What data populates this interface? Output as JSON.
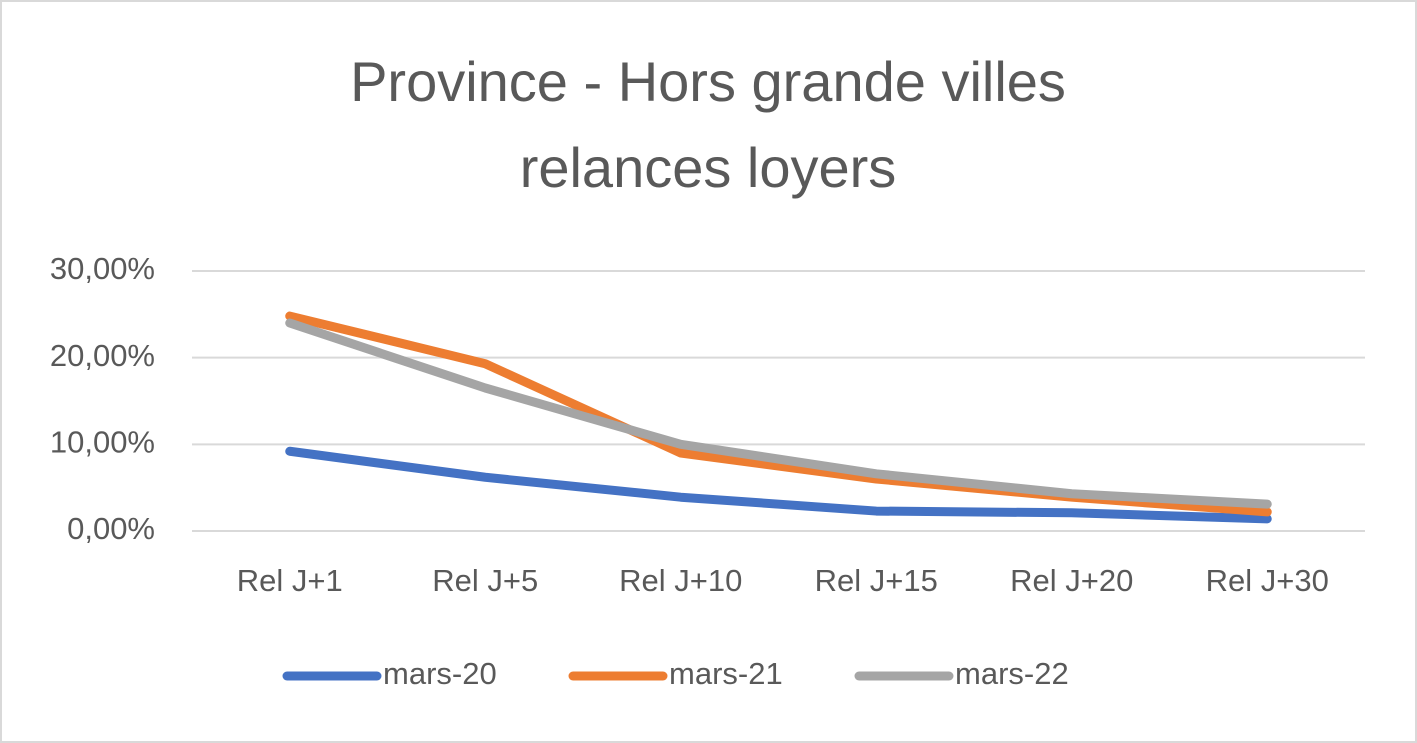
{
  "chart_data": {
    "type": "line",
    "title": [
      "Province - Hors grande villes",
      "relances loyers"
    ],
    "categories": [
      "Rel J+1",
      "Rel J+5",
      "Rel J+10",
      "Rel J+15",
      "Rel J+20",
      "Rel J+30"
    ],
    "series": [
      {
        "name": "mars-20",
        "color": "#4472c4",
        "values": [
          9.2,
          6.2,
          3.9,
          2.3,
          2.1,
          1.4
        ]
      },
      {
        "name": "mars-21",
        "color": "#ed7d31",
        "values": [
          24.8,
          19.3,
          9.0,
          6.0,
          3.9,
          2.2
        ]
      },
      {
        "name": "mars-22",
        "color": "#a5a5a5",
        "values": [
          24.0,
          16.5,
          10.0,
          6.6,
          4.3,
          3.1
        ]
      }
    ],
    "ylim": [
      0,
      30
    ],
    "yticks": [
      {
        "value": 0,
        "label": "0,00%"
      },
      {
        "value": 10,
        "label": "10,00%"
      },
      {
        "value": 20,
        "label": "20,00%"
      },
      {
        "value": 30,
        "label": "30,00%"
      }
    ],
    "grid": true,
    "legend": "bottom"
  }
}
